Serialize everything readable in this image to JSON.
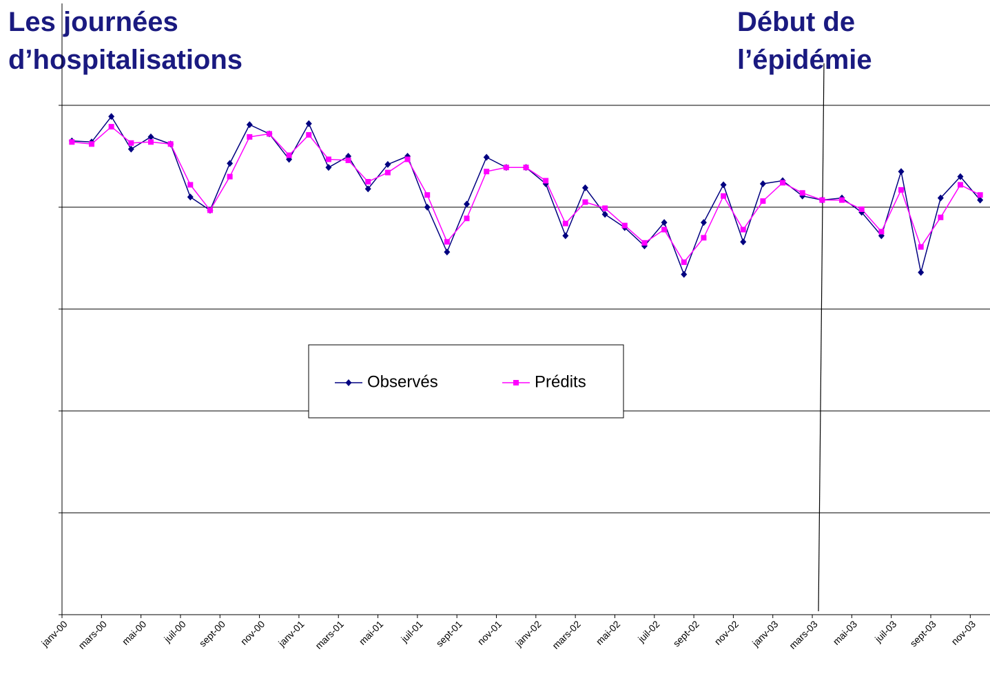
{
  "chart_data": {
    "type": "line",
    "title": [
      "Les journées",
      "d’hospitalisations"
    ],
    "annotation": [
      "Début de",
      "l’épidémie"
    ],
    "categories": [
      "janv-00",
      null,
      "mars-00",
      null,
      "mai-00",
      null,
      "juil-00",
      null,
      "sept-00",
      null,
      "nov-00",
      null,
      "janv-01",
      null,
      "mars-01",
      null,
      "mai-01",
      null,
      "juil-01",
      null,
      "sept-01",
      null,
      "nov-01",
      null,
      "janv-02",
      null,
      "mars-02",
      null,
      "mai-02",
      null,
      "juil-02",
      null,
      "sept-02",
      null,
      "nov-02",
      null,
      "janv-03",
      null,
      "mars-03",
      null,
      "mai-03",
      null,
      "juil-03",
      null,
      "sept-03",
      null,
      "nov-03"
    ],
    "series": [
      {
        "name": "Observés",
        "color": "#000080",
        "marker": "diamond",
        "values": [
          4.65,
          4.64,
          4.89,
          4.57,
          4.69,
          4.62,
          4.1,
          3.97,
          4.43,
          4.81,
          4.72,
          4.47,
          4.82,
          4.39,
          4.5,
          4.18,
          4.42,
          4.5,
          4.0,
          3.56,
          4.03,
          4.49,
          4.39,
          4.39,
          4.23,
          3.72,
          4.19,
          3.93,
          3.8,
          3.62,
          3.85,
          3.34,
          3.85,
          4.22,
          3.66,
          4.23,
          4.26,
          4.11,
          4.07,
          4.09,
          3.95,
          3.72,
          4.35,
          3.36,
          4.09,
          4.3,
          4.07
        ]
      },
      {
        "name": "Prédits",
        "color": "#ff00ff",
        "marker": "square",
        "values": [
          4.64,
          4.62,
          4.79,
          4.63,
          4.64,
          4.62,
          4.22,
          3.97,
          4.3,
          4.69,
          4.72,
          4.51,
          4.71,
          4.47,
          4.46,
          4.25,
          4.34,
          4.47,
          4.12,
          3.66,
          3.89,
          4.35,
          4.39,
          4.39,
          4.26,
          3.84,
          4.05,
          3.99,
          3.82,
          3.65,
          3.78,
          3.46,
          3.7,
          4.11,
          3.78,
          4.06,
          4.24,
          4.14,
          4.07,
          4.07,
          3.98,
          3.76,
          4.17,
          3.61,
          3.9,
          4.22,
          4.12
        ]
      }
    ],
    "ylim": [
      0,
      6
    ],
    "yticks": [
      0,
      1,
      2,
      3,
      4,
      5
    ],
    "grid": true,
    "legend": "center"
  }
}
